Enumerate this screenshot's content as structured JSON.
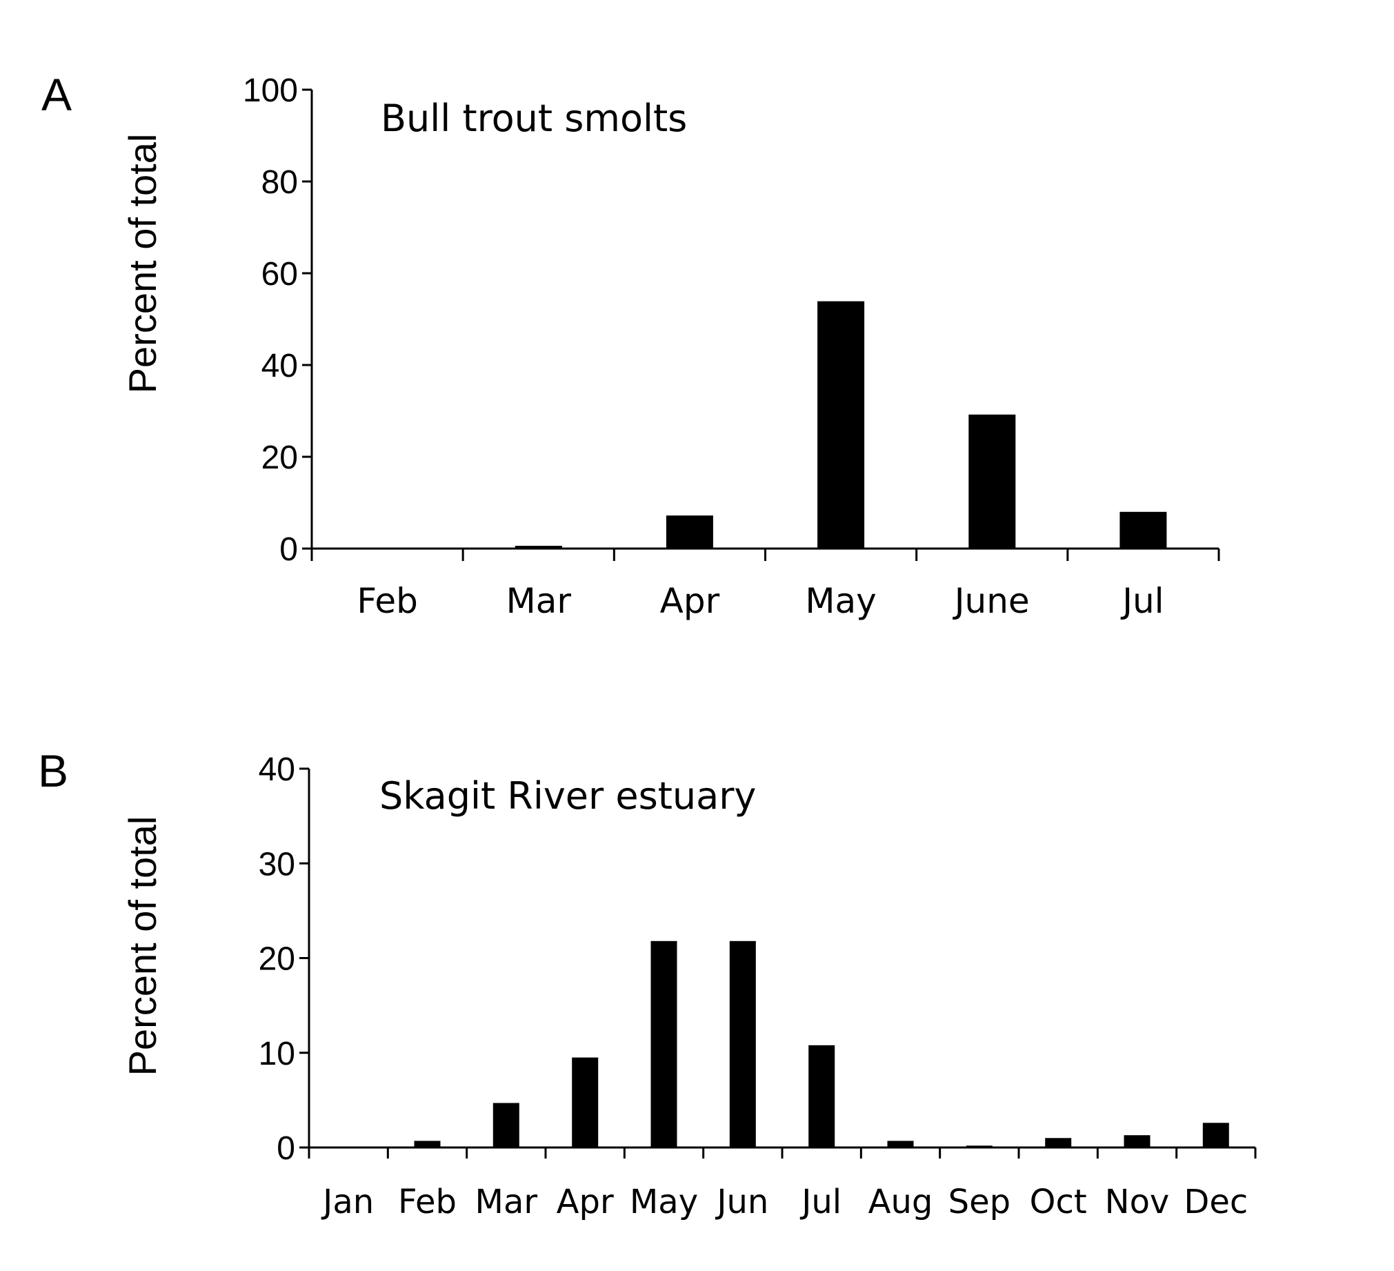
{
  "chart_data": [
    {
      "type": "bar",
      "panel": "A",
      "title": "Bull trout smolts",
      "ylabel": "Percent of total",
      "xlabel": "",
      "ylim": [
        0,
        100
      ],
      "yticks": [
        "0",
        "20",
        "40",
        "60",
        "80",
        "100"
      ],
      "categories": [
        "Feb",
        "Mar",
        "Apr",
        "May",
        "June",
        "Jul"
      ],
      "values": [
        0,
        0.6,
        7.2,
        53.9,
        29.2,
        8.0
      ],
      "grid": false,
      "legend": "none",
      "bar_color": "#000000"
    },
    {
      "type": "bar",
      "panel": "B",
      "title": "Skagit River estuary",
      "ylabel": "Percent of total",
      "xlabel": "",
      "ylim": [
        0,
        40
      ],
      "yticks": [
        "0",
        "10",
        "20",
        "30",
        "40"
      ],
      "categories": [
        "Jan",
        "Feb",
        "Mar",
        "Apr",
        "May",
        "Jun",
        "Jul",
        "Aug",
        "Sep",
        "Oct",
        "Nov",
        "Dec"
      ],
      "values": [
        0,
        0.7,
        4.7,
        9.5,
        21.8,
        21.8,
        10.8,
        0.7,
        0.2,
        1.0,
        1.3,
        2.6
      ],
      "grid": false,
      "legend": "none",
      "bar_color": "#000000"
    }
  ]
}
